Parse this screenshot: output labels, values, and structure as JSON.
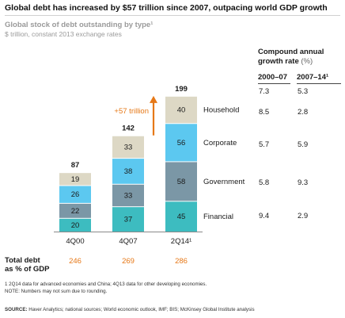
{
  "title": "Global debt has increased by $57 trillion since 2007, outpacing world GDP growth",
  "subtitle": "Global stock of debt outstanding by type¹",
  "units": "$ trillion, constant 2013 exchange rates",
  "chart_data": {
    "type": "bar",
    "stacked": true,
    "categories": [
      "4Q00",
      "4Q07",
      "2Q14¹"
    ],
    "series": [
      {
        "name": "Financial",
        "values": [
          20,
          37,
          45
        ],
        "color": "#3dbcc0"
      },
      {
        "name": "Government",
        "values": [
          22,
          33,
          58
        ],
        "color": "#7b97a6"
      },
      {
        "name": "Corporate",
        "values": [
          26,
          38,
          56
        ],
        "color": "#5cc8f0"
      },
      {
        "name": "Household",
        "values": [
          19,
          33,
          40
        ],
        "color": "#ddd8c5"
      }
    ],
    "totals": [
      "87",
      "142",
      "199"
    ],
    "annotation": "+57 trillion",
    "annotation_color": "#e67817"
  },
  "cagr": {
    "header_line1": "Compound annual",
    "header_line2": "growth rate",
    "header_pct": "(%)",
    "periods": [
      "2000–07",
      "2007–14¹"
    ],
    "totals": [
      "7.3",
      "5.3"
    ],
    "rows": [
      {
        "name": "Household",
        "values": [
          "8.5",
          "2.8"
        ]
      },
      {
        "name": "Corporate",
        "values": [
          "5.7",
          "5.9"
        ]
      },
      {
        "name": "Government",
        "values": [
          "5.8",
          "9.3"
        ]
      },
      {
        "name": "Financial",
        "values": [
          "9.4",
          "2.9"
        ]
      }
    ]
  },
  "total_debt": {
    "label_line1": "Total debt",
    "label_line2": "as % of GDP",
    "values": [
      "246",
      "269",
      "286"
    ]
  },
  "footnotes": [
    "1  2Q14 data for advanced economies and China; 4Q13 data for other developing economies.",
    "NOTE: Numbers may not sum due to rounding."
  ],
  "source": {
    "prefix": "SOURCE:",
    "text": " Haver Analytics; national sources; World economic outlook, IMF; BIS; McKinsey Global Institute analysis"
  }
}
